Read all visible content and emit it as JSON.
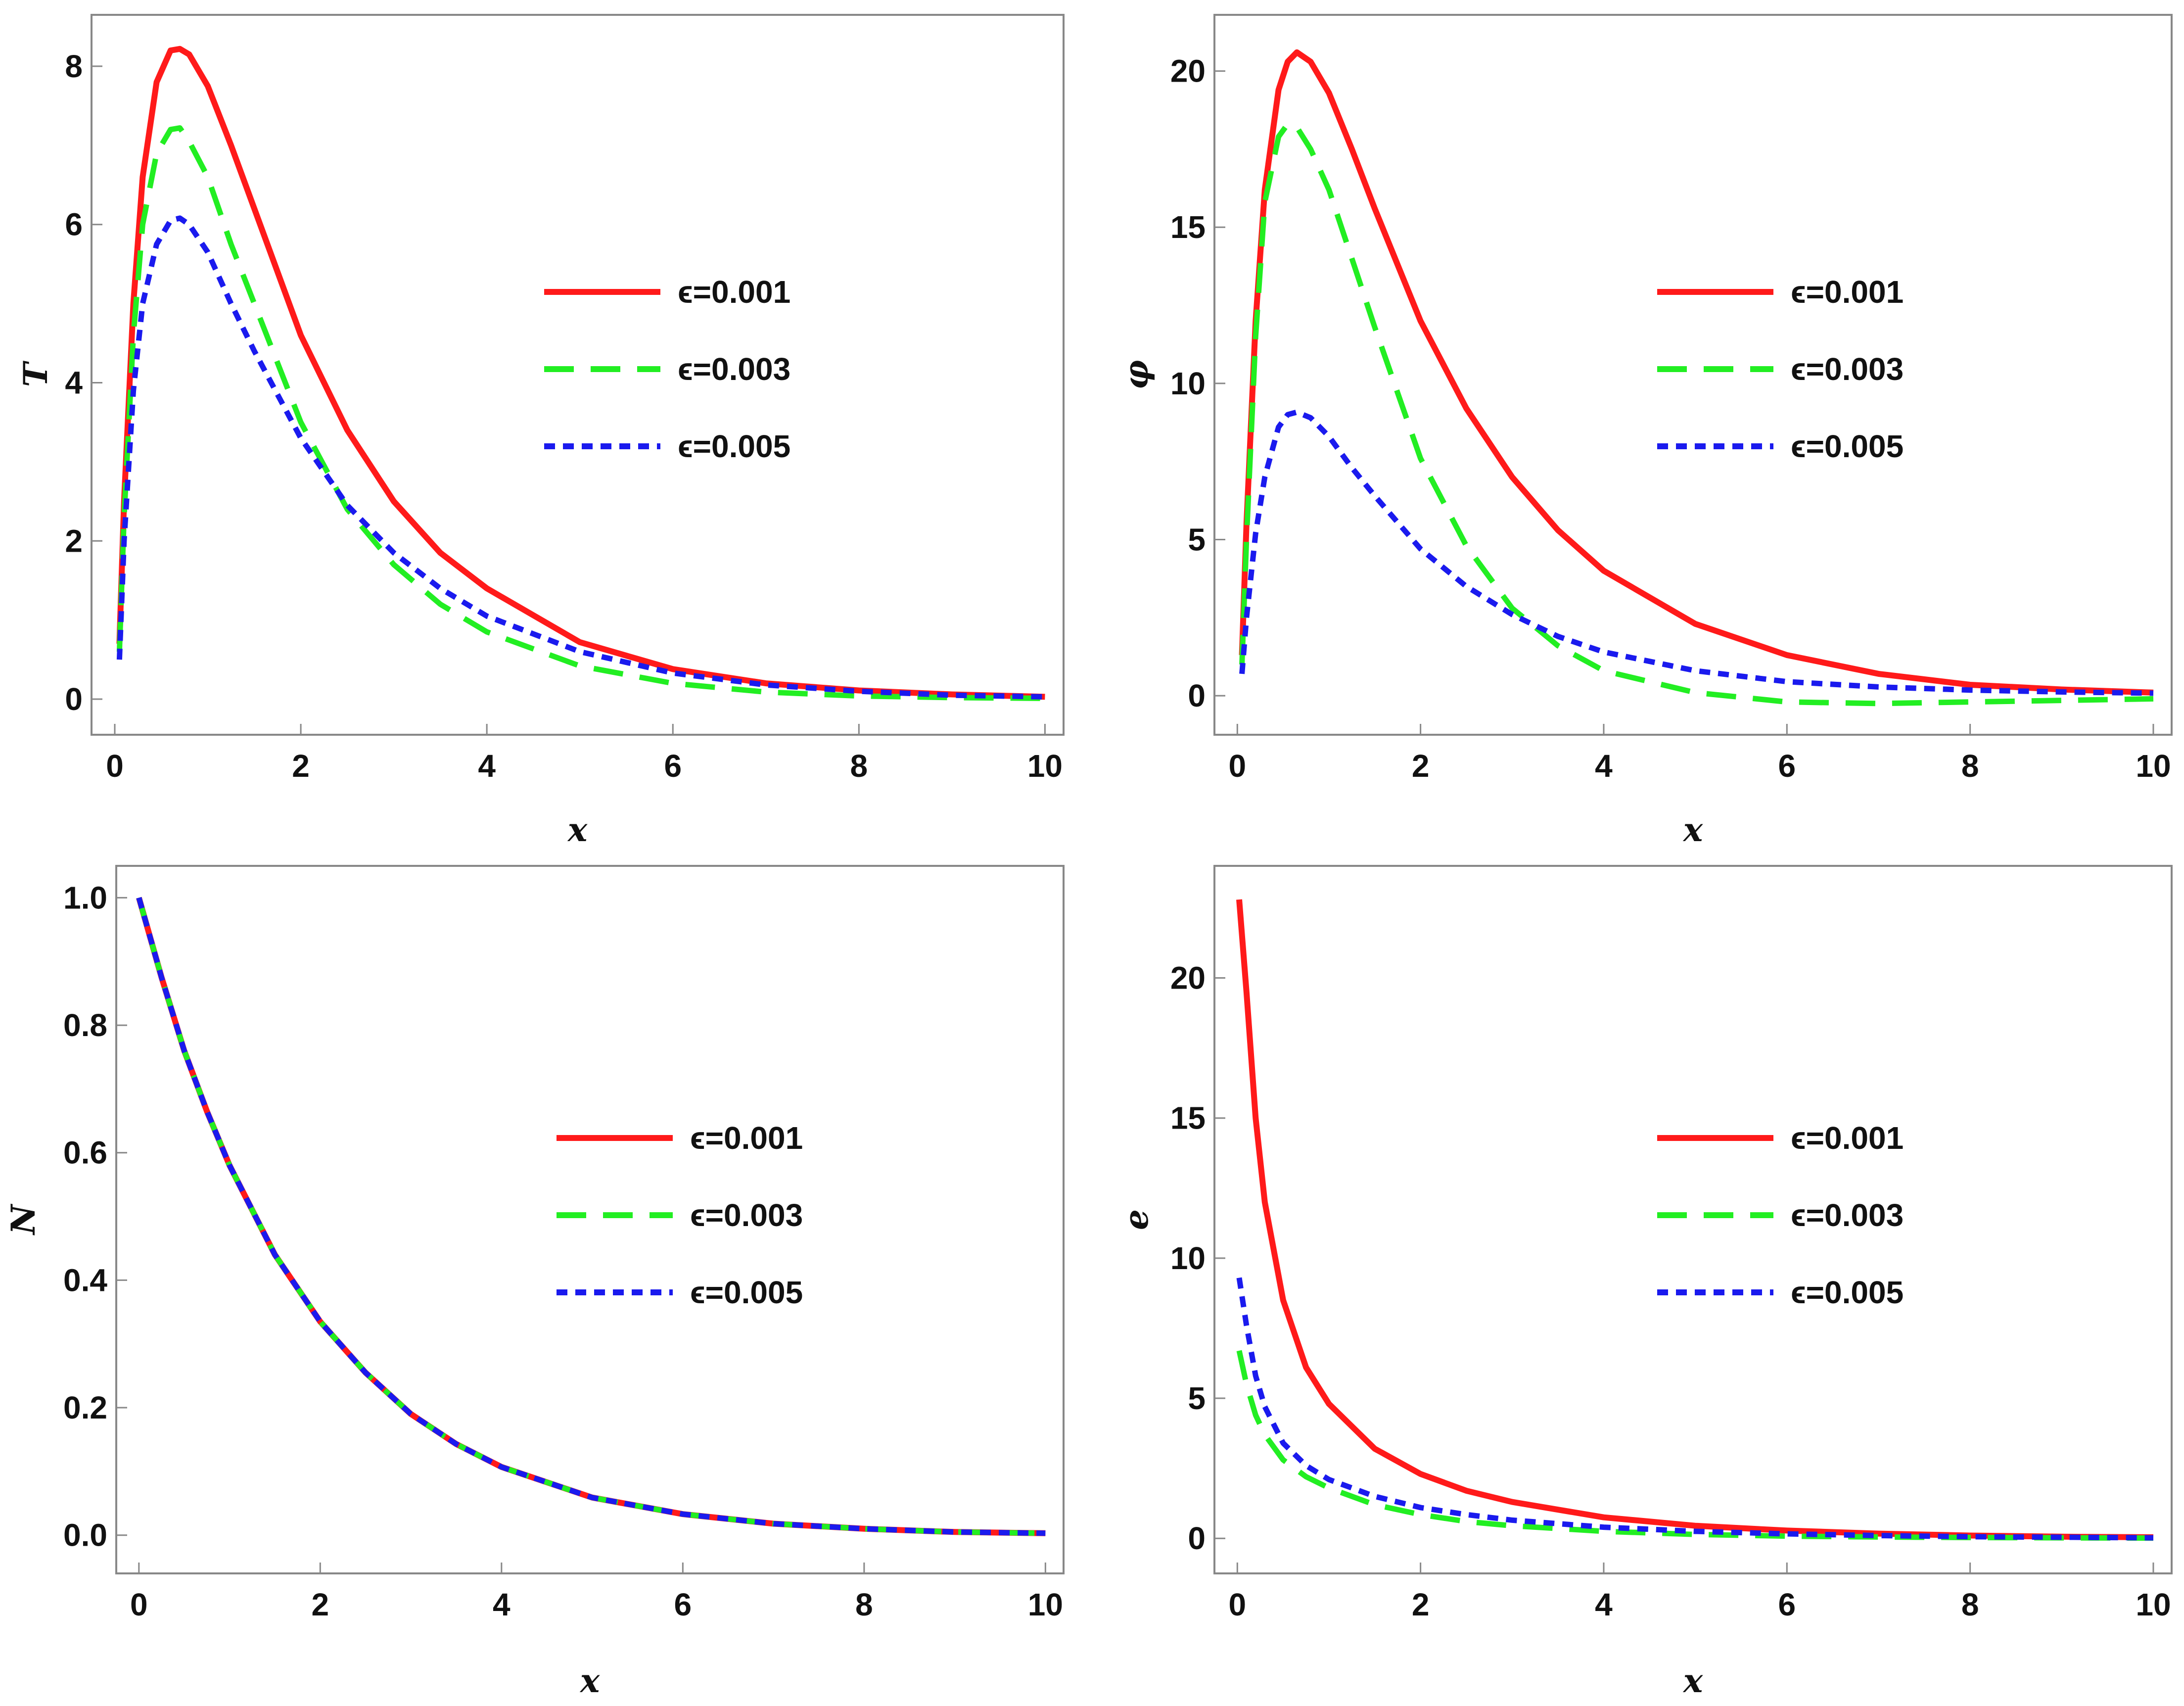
{
  "colors": {
    "red": "#ff1a1a",
    "green": "#22ee22",
    "blue": "#1a1aee"
  },
  "legend": [
    {
      "label": "ϵ=0.001",
      "color": "#ff1a1a",
      "style": "solid"
    },
    {
      "label": "ϵ=0.003",
      "color": "#22ee22",
      "style": "dashed"
    },
    {
      "label": "ϵ=0.005",
      "color": "#1a1aee",
      "style": "dotted"
    }
  ],
  "chart_data": [
    {
      "type": "line",
      "ylabel": "T",
      "xlabel": "x",
      "xlim": [
        -0.25,
        10.2
      ],
      "ylim": [
        -0.45,
        8.65
      ],
      "xticks": [
        0,
        2,
        4,
        6,
        8,
        10
      ],
      "yticks": [
        0,
        2,
        4,
        6,
        8
      ],
      "x": [
        0.05,
        0.1,
        0.2,
        0.3,
        0.45,
        0.6,
        0.7,
        0.8,
        1.0,
        1.25,
        1.5,
        2.0,
        2.5,
        3.0,
        3.5,
        4.0,
        5.0,
        6.0,
        7.0,
        8.0,
        9.0,
        10.0
      ],
      "series": [
        {
          "name": "ϵ=0.001",
          "values": [
            0.7,
            2.5,
            5.0,
            6.6,
            7.8,
            8.2,
            8.22,
            8.15,
            7.75,
            7.0,
            6.2,
            4.6,
            3.4,
            2.5,
            1.85,
            1.4,
            0.72,
            0.38,
            0.2,
            0.11,
            0.06,
            0.03
          ]
        },
        {
          "name": "ϵ=0.003",
          "values": [
            0.6,
            2.3,
            4.6,
            6.0,
            6.9,
            7.2,
            7.22,
            7.05,
            6.6,
            5.75,
            5.0,
            3.5,
            2.4,
            1.7,
            1.2,
            0.85,
            0.42,
            0.2,
            0.09,
            0.04,
            0.02,
            0.01
          ]
        },
        {
          "name": "ϵ=0.005",
          "values": [
            0.5,
            2.0,
            3.9,
            5.0,
            5.75,
            6.05,
            6.08,
            6.0,
            5.65,
            5.0,
            4.4,
            3.3,
            2.45,
            1.85,
            1.4,
            1.05,
            0.6,
            0.33,
            0.18,
            0.1,
            0.05,
            0.03
          ]
        }
      ]
    },
    {
      "type": "line",
      "ylabel": "φ",
      "xlabel": "x",
      "xlim": [
        -0.25,
        10.2
      ],
      "ylim": [
        -1.25,
        21.8
      ],
      "xticks": [
        0,
        2,
        4,
        6,
        8,
        10
      ],
      "yticks": [
        0,
        5,
        10,
        15,
        20
      ],
      "x": [
        0.05,
        0.1,
        0.2,
        0.3,
        0.45,
        0.55,
        0.65,
        0.8,
        1.0,
        1.25,
        1.5,
        2.0,
        2.5,
        3.0,
        3.5,
        4.0,
        5.0,
        6.0,
        7.0,
        8.0,
        9.0,
        10.0
      ],
      "series": [
        {
          "name": "ϵ=0.001",
          "values": [
            1.3,
            5.5,
            12.0,
            16.2,
            19.4,
            20.3,
            20.6,
            20.3,
            19.3,
            17.5,
            15.6,
            12.0,
            9.2,
            7.0,
            5.3,
            4.0,
            2.3,
            1.3,
            0.7,
            0.35,
            0.2,
            0.1
          ]
        },
        {
          "name": "ϵ=0.003",
          "values": [
            1.0,
            5.0,
            11.5,
            15.8,
            17.9,
            18.3,
            18.2,
            17.5,
            16.2,
            14.0,
            11.8,
            7.6,
            4.8,
            2.8,
            1.6,
            0.8,
            0.1,
            -0.2,
            -0.25,
            -0.2,
            -0.15,
            -0.1
          ]
        },
        {
          "name": "ϵ=0.005",
          "values": [
            0.7,
            2.5,
            5.2,
            7.0,
            8.6,
            9.0,
            9.08,
            8.9,
            8.3,
            7.3,
            6.4,
            4.7,
            3.5,
            2.6,
            1.9,
            1.4,
            0.8,
            0.45,
            0.28,
            0.18,
            0.12,
            0.08
          ]
        }
      ]
    },
    {
      "type": "line",
      "ylabel": "N",
      "xlabel": "x",
      "xlim": [
        -0.25,
        10.2
      ],
      "ylim": [
        -0.06,
        1.05
      ],
      "xticks": [
        0,
        2,
        4,
        6,
        8,
        10
      ],
      "yticks": [
        0.0,
        0.2,
        0.4,
        0.6,
        0.8,
        1.0
      ],
      "tick_format": 1,
      "x": [
        0,
        0.25,
        0.5,
        0.75,
        1.0,
        1.5,
        2.0,
        2.5,
        3.0,
        3.5,
        4.0,
        5.0,
        6.0,
        7.0,
        8.0,
        9.0,
        10.0
      ],
      "series": [
        {
          "name": "ϵ=0.001",
          "values": [
            1.0,
            0.875,
            0.76,
            0.665,
            0.58,
            0.44,
            0.335,
            0.255,
            0.19,
            0.143,
            0.107,
            0.059,
            0.033,
            0.018,
            0.01,
            0.005,
            0.003
          ]
        },
        {
          "name": "ϵ=0.003",
          "values": [
            1.0,
            0.875,
            0.76,
            0.665,
            0.58,
            0.44,
            0.335,
            0.255,
            0.19,
            0.143,
            0.107,
            0.059,
            0.033,
            0.018,
            0.01,
            0.005,
            0.003
          ]
        },
        {
          "name": "ϵ=0.005",
          "values": [
            1.0,
            0.875,
            0.76,
            0.665,
            0.58,
            0.44,
            0.335,
            0.255,
            0.19,
            0.143,
            0.107,
            0.059,
            0.033,
            0.018,
            0.01,
            0.005,
            0.003
          ]
        }
      ]
    },
    {
      "type": "line",
      "ylabel": "e",
      "xlabel": "x",
      "xlim": [
        -0.25,
        10.2
      ],
      "ylim": [
        -1.25,
        24.0
      ],
      "xticks": [
        0,
        2,
        4,
        6,
        8,
        10
      ],
      "yticks": [
        0,
        5,
        10,
        15,
        20
      ],
      "x": [
        0.02,
        0.1,
        0.2,
        0.3,
        0.5,
        0.75,
        1.0,
        1.5,
        2.0,
        2.5,
        3.0,
        4.0,
        5.0,
        6.0,
        7.0,
        8.0,
        9.0,
        10.0
      ],
      "series": [
        {
          "name": "ϵ=0.001",
          "values": [
            22.8,
            19.5,
            15.0,
            12.0,
            8.5,
            6.1,
            4.8,
            3.2,
            2.3,
            1.7,
            1.3,
            0.75,
            0.45,
            0.28,
            0.17,
            0.1,
            0.06,
            0.04
          ]
        },
        {
          "name": "ϵ=0.003",
          "values": [
            6.7,
            5.5,
            4.4,
            3.7,
            2.8,
            2.2,
            1.8,
            1.2,
            0.85,
            0.6,
            0.45,
            0.25,
            0.14,
            0.08,
            0.05,
            0.03,
            0.02,
            0.01
          ]
        },
        {
          "name": "ϵ=0.005",
          "values": [
            9.3,
            7.6,
            5.8,
            4.7,
            3.4,
            2.6,
            2.1,
            1.5,
            1.1,
            0.85,
            0.65,
            0.4,
            0.25,
            0.16,
            0.1,
            0.06,
            0.04,
            0.02
          ]
        }
      ]
    }
  ]
}
